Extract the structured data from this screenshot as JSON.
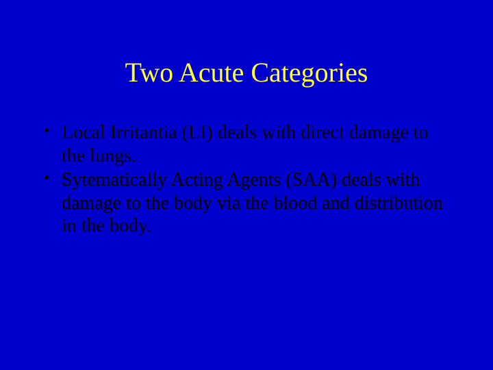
{
  "slide": {
    "title": "Two Acute Categories",
    "bullets": [
      "Local Irritantia (LI) deals with direct damage to the lungs.",
      "Sytematically Acting Agents (SAA) deals with damage to the body via the blood and distribution in the body."
    ],
    "colors": {
      "background": "#0000cc",
      "title": "#ffff33",
      "body_text": "#000000"
    },
    "typography": {
      "title_fontsize_pt": 40,
      "body_fontsize_pt": 28,
      "font_family": "Times New Roman"
    }
  }
}
